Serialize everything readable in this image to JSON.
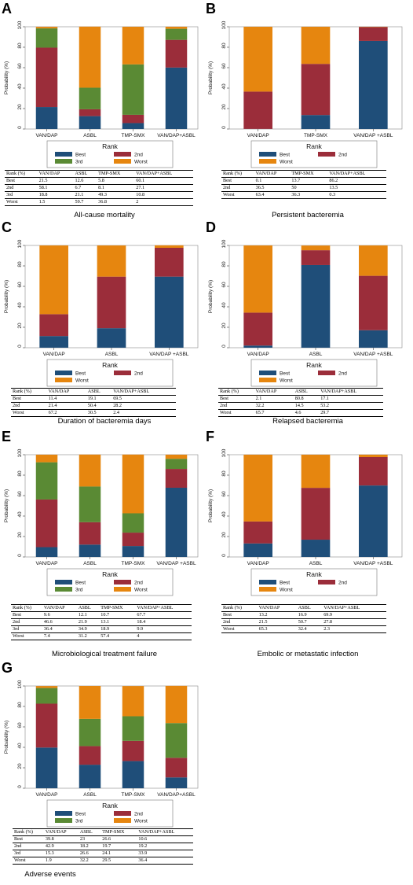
{
  "colors": {
    "best": "#1f4e79",
    "second": "#9b2d3a",
    "third": "#5a8a34",
    "worst": "#e6860f"
  },
  "common": {
    "ylabel": "Probability (%)",
    "legend_title": "Rank",
    "yticks": [
      0,
      20,
      40,
      60,
      80,
      100
    ]
  },
  "chart_data": [
    {
      "panel": "A",
      "type": "bar",
      "stacked": true,
      "categories": [
        "VAN/DAP",
        "ASBL",
        "TMP-SMX",
        "VAN/DAP+ASBL"
      ],
      "ylabel": "Probability (%)",
      "ylim": [
        0,
        100
      ],
      "series": [
        {
          "name": "Best",
          "values": [
            21.5,
            12.6,
            5.8,
            60.1
          ]
        },
        {
          "name": "2nd",
          "values": [
            58.1,
            6.7,
            8.1,
            27.1
          ]
        },
        {
          "name": "3rd",
          "values": [
            18.8,
            21.1,
            49.3,
            10.8
          ]
        },
        {
          "name": "Worst",
          "values": [
            1.5,
            59.7,
            36.8,
            2
          ]
        }
      ],
      "table_headers": [
        "Rank (%)",
        "VAN/DAP",
        "ASBL",
        "TMP-SMX",
        "VAN/DAP+ASBL"
      ],
      "table_rows": [
        [
          "Best",
          "21.5",
          "12.6",
          "5.8",
          "60.1"
        ],
        [
          "2nd",
          "58.1",
          "6.7",
          "8.1",
          "27.1"
        ],
        [
          "3rd",
          "18.8",
          "21.1",
          "49.3",
          "10.8"
        ],
        [
          "Worst",
          "1.5",
          "59.7",
          "36.8",
          "2"
        ]
      ],
      "caption": "All-cause mortality"
    },
    {
      "panel": "B",
      "type": "bar",
      "stacked": true,
      "categories": [
        "VAN/DAP",
        "TMP-SMX",
        "VAN/DAP +ASBL"
      ],
      "ylabel": "Probability (%)",
      "ylim": [
        0,
        100
      ],
      "series": [
        {
          "name": "Best",
          "values": [
            0.1,
            13.7,
            86.2
          ]
        },
        {
          "name": "2nd",
          "values": [
            36.5,
            50,
            13.5
          ]
        },
        {
          "name": "Worst",
          "values": [
            63.4,
            36.3,
            0.3
          ]
        }
      ],
      "table_headers": [
        "Rank (%)",
        "VAN/DAP",
        "TMP-SMX",
        "VAN/DAP+ASBL"
      ],
      "table_rows": [
        [
          "Best",
          "0.1",
          "13.7",
          "86.2"
        ],
        [
          "2nd",
          "36.5",
          "50",
          "13.5"
        ],
        [
          "Worst",
          "63.4",
          "36.3",
          "0.3"
        ]
      ],
      "caption": "Persistent bacteremia"
    },
    {
      "panel": "C",
      "type": "bar",
      "stacked": true,
      "categories": [
        "VAN/DAP",
        "ASBL",
        "VAN/DAP +ASBL"
      ],
      "ylabel": "Probability (%)",
      "ylim": [
        0,
        100
      ],
      "series": [
        {
          "name": "Best",
          "values": [
            11.4,
            19.1,
            69.5
          ]
        },
        {
          "name": "2nd",
          "values": [
            21.4,
            50.4,
            28.2
          ]
        },
        {
          "name": "Worst",
          "values": [
            67.2,
            30.5,
            2.4
          ]
        }
      ],
      "table_headers": [
        "Rank (%)",
        "VAN/DAP",
        "ASBL",
        "VAN/DAP+ASBL"
      ],
      "table_rows": [
        [
          "Best",
          "11.4",
          "19.1",
          "69.5"
        ],
        [
          "2nd",
          "21.4",
          "50.4",
          "28.2"
        ],
        [
          "Worst",
          "67.2",
          "30.5",
          "2.4"
        ]
      ],
      "caption": "Duration of bacteremia days"
    },
    {
      "panel": "D",
      "type": "bar",
      "stacked": true,
      "categories": [
        "VAN/DAP",
        "ASBL",
        "VAN/DAP +ASBL"
      ],
      "ylabel": "Probability (%)",
      "ylim": [
        0,
        100
      ],
      "series": [
        {
          "name": "Best",
          "values": [
            2.1,
            80.8,
            17.1
          ]
        },
        {
          "name": "2nd",
          "values": [
            32.2,
            14.5,
            53.2
          ]
        },
        {
          "name": "Worst",
          "values": [
            65.7,
            4.6,
            29.7
          ]
        }
      ],
      "table_headers": [
        "Rank (%)",
        "VAN/DAP",
        "ASBL",
        "VAN/DAP+ASBL"
      ],
      "table_rows": [
        [
          "Best",
          "2.1",
          "80.8",
          "17.1"
        ],
        [
          "2nd",
          "32.2",
          "14.5",
          "53.2"
        ],
        [
          "Worst",
          "65.7",
          "4.6",
          "29.7"
        ]
      ],
      "caption": "Relapsed bacteremia"
    },
    {
      "panel": "E",
      "type": "bar",
      "stacked": true,
      "categories": [
        "VAN/DAP",
        "ASBL",
        "TMP-SMX",
        "VAN/DAP +ASBL"
      ],
      "ylabel": "Probability (%)",
      "ylim": [
        0,
        100
      ],
      "series": [
        {
          "name": "Best",
          "values": [
            9.6,
            12.1,
            10.7,
            67.7
          ]
        },
        {
          "name": "2nd",
          "values": [
            46.6,
            21.9,
            13.1,
            18.4
          ]
        },
        {
          "name": "3rd",
          "values": [
            36.4,
            34.9,
            18.9,
            9.9
          ]
        },
        {
          "name": "Worst",
          "values": [
            7.4,
            31.2,
            57.4,
            4
          ]
        }
      ],
      "table_headers": [
        "Rank (%)",
        "VAN/DAP",
        "ASBL",
        "TMP-SMX",
        "VAN/DAP+ASBL"
      ],
      "table_rows": [
        [
          "Best",
          "9.6",
          "12.1",
          "10.7",
          "67.7"
        ],
        [
          "2nd",
          "46.6",
          "21.9",
          "13.1",
          "18.4"
        ],
        [
          "3rd",
          "36.4",
          "34.9",
          "18.9",
          "9.9"
        ],
        [
          "Worst",
          "7.4",
          "31.2",
          "57.4",
          "4"
        ]
      ],
      "caption": "Microbiological treatment failure"
    },
    {
      "panel": "F",
      "type": "bar",
      "stacked": true,
      "categories": [
        "VAN/DAP",
        "ASBL",
        "VAN/DAP +ASBL"
      ],
      "ylabel": "Probability (%)",
      "ylim": [
        0,
        100
      ],
      "series": [
        {
          "name": "Best",
          "values": [
            13.2,
            16.9,
            69.9
          ]
        },
        {
          "name": "2nd",
          "values": [
            21.5,
            50.7,
            27.8
          ]
        },
        {
          "name": "Worst",
          "values": [
            65.3,
            32.4,
            2.3
          ]
        }
      ],
      "table_headers": [
        "Rank (%)",
        "VAN/DAP",
        "ASBL",
        "VAN/DAP+ASBL"
      ],
      "table_rows": [
        [
          "Best",
          "13.2",
          "16.9",
          "69.9"
        ],
        [
          "2nd",
          "21.5",
          "50.7",
          "27.8"
        ],
        [
          "Worst",
          "65.3",
          "32.4",
          "2.3"
        ]
      ],
      "caption": "Embolic or metastatic infection"
    },
    {
      "panel": "G",
      "type": "bar",
      "stacked": true,
      "categories": [
        "VAN/DAP",
        "ASBL",
        "TMP-SMX",
        "VAN/DAP+ASBL"
      ],
      "ylabel": "Probability (%)",
      "ylim": [
        0,
        100
      ],
      "series": [
        {
          "name": "Best",
          "values": [
            39.8,
            23,
            26.6,
            10.6
          ]
        },
        {
          "name": "2nd",
          "values": [
            42.9,
            18.2,
            19.7,
            19.2
          ]
        },
        {
          "name": "3rd",
          "values": [
            15.3,
            26.6,
            24.1,
            33.9
          ]
        },
        {
          "name": "Worst",
          "values": [
            1.9,
            32.2,
            29.5,
            36.4
          ]
        }
      ],
      "table_headers": [
        "Rank (%)",
        "VAN/DAP",
        "ASBL",
        "TMP-SMX",
        "VAN/DAP+ASBL"
      ],
      "table_rows": [
        [
          "Best",
          "39.8",
          "23",
          "26.6",
          "10.6"
        ],
        [
          "2nd",
          "42.9",
          "18.2",
          "19.7",
          "19.2"
        ],
        [
          "3rd",
          "15.3",
          "26.6",
          "24.1",
          "33.9"
        ],
        [
          "Worst",
          "1.9",
          "32.2",
          "29.5",
          "36.4"
        ]
      ],
      "caption": "Adverse events"
    }
  ]
}
